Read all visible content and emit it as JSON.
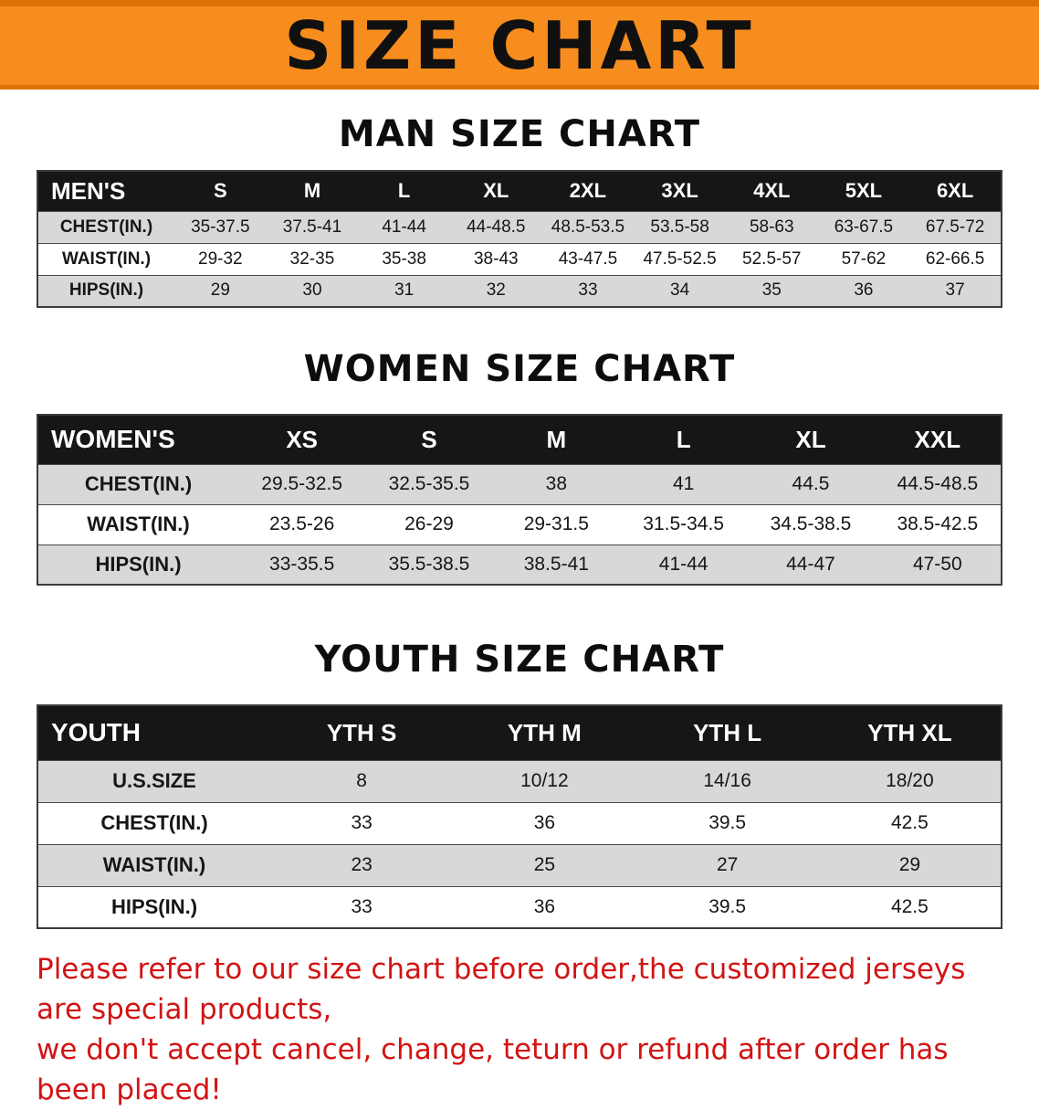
{
  "banner": {
    "title": "SIZE CHART"
  },
  "colors": {
    "banner_orange": "#f78d1e",
    "banner_orange_dark": "#dd7307",
    "header_black": "#161616",
    "stripe_gray": "#d8d8d8",
    "footer_red": "#d21414",
    "text_black": "#111111"
  },
  "sections": [
    {
      "heading": "MAN SIZE CHART",
      "table": {
        "corner": "MEN'S",
        "columns": [
          "S",
          "M",
          "L",
          "XL",
          "2XL",
          "3XL",
          "4XL",
          "5XL",
          "6XL"
        ],
        "rows": [
          {
            "label": "CHEST(IN.)",
            "values": [
              "35-37.5",
              "37.5-41",
              "41-44",
              "44-48.5",
              "48.5-53.5",
              "53.5-58",
              "58-63",
              "63-67.5",
              "67.5-72"
            ]
          },
          {
            "label": "WAIST(IN.)",
            "values": [
              "29-32",
              "32-35",
              "35-38",
              "38-43",
              "43-47.5",
              "47.5-52.5",
              "52.5-57",
              "57-62",
              "62-66.5"
            ]
          },
          {
            "label": "HIPS(IN.)",
            "values": [
              "29",
              "30",
              "31",
              "32",
              "33",
              "34",
              "35",
              "36",
              "37"
            ]
          }
        ]
      }
    },
    {
      "heading": "WOMEN SIZE CHART",
      "table": {
        "corner": "WOMEN'S",
        "columns": [
          "XS",
          "S",
          "M",
          "L",
          "XL",
          "XXL"
        ],
        "rows": [
          {
            "label": "CHEST(IN.)",
            "values": [
              "29.5-32.5",
              "32.5-35.5",
              "38",
              "41",
              "44.5",
              "44.5-48.5"
            ]
          },
          {
            "label": "WAIST(IN.)",
            "values": [
              "23.5-26",
              "26-29",
              "29-31.5",
              "31.5-34.5",
              "34.5-38.5",
              "38.5-42.5"
            ]
          },
          {
            "label": "HIPS(IN.)",
            "values": [
              "33-35.5",
              "35.5-38.5",
              "38.5-41",
              "41-44",
              "44-47",
              "47-50"
            ]
          }
        ]
      }
    },
    {
      "heading": "YOUTH SIZE CHART",
      "table": {
        "corner": "YOUTH",
        "columns": [
          "YTH S",
          "YTH M",
          "YTH L",
          "YTH XL"
        ],
        "rows": [
          {
            "label": "U.S.SIZE",
            "values": [
              "8",
              "10/12",
              "14/16",
              "18/20"
            ]
          },
          {
            "label": "CHEST(IN.)",
            "values": [
              "33",
              "36",
              "39.5",
              "42.5"
            ]
          },
          {
            "label": "WAIST(IN.)",
            "values": [
              "23",
              "25",
              "27",
              "29"
            ]
          },
          {
            "label": "HIPS(IN.)",
            "values": [
              "33",
              "36",
              "39.5",
              "42.5"
            ]
          }
        ]
      }
    }
  ],
  "footer": {
    "line1": "Please refer to our size chart before order,the customized jerseys are special products,",
    "line2": "we don't accept cancel, change, teturn or refund after order has been placed!"
  }
}
